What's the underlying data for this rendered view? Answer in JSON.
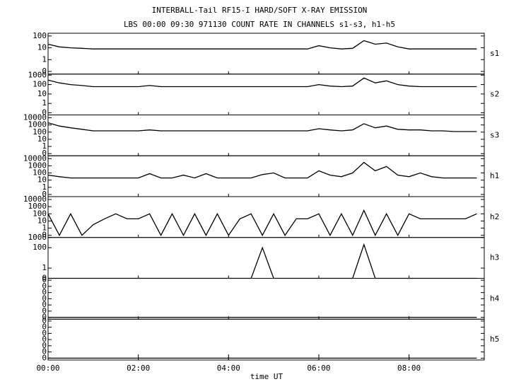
{
  "chart_data": {
    "type": "line",
    "title": "INTERBALL-Tail RF15-I HARD/SOFT X-RAY EMISSION",
    "subtitle": "LBS 00:00 09:30 971130  COUNT RATE IN CHANNELS s1-s3, h1-h5",
    "xlabel": "time UT",
    "xlim": [
      0,
      580
    ],
    "xticks": [
      {
        "value": 0,
        "label": "00:00"
      },
      {
        "value": 120,
        "label": "02:00"
      },
      {
        "value": 240,
        "label": "04:00"
      },
      {
        "value": 360,
        "label": "06:00"
      },
      {
        "value": 480,
        "label": "08:00"
      }
    ],
    "log_scale": true,
    "x": [
      0,
      15,
      30,
      45,
      60,
      75,
      90,
      105,
      120,
      135,
      150,
      165,
      180,
      195,
      210,
      225,
      240,
      255,
      270,
      285,
      300,
      315,
      330,
      345,
      360,
      375,
      390,
      405,
      420,
      435,
      450,
      465,
      480,
      495,
      510,
      525,
      540,
      555,
      570
    ],
    "series": [
      {
        "name": "s1",
        "color": "#000000",
        "ylim": [
          0.06,
          170
        ],
        "yticks": [
          100,
          10,
          1,
          {
            "value": 0.1,
            "label": "0"
          }
        ],
        "values": [
          20,
          12,
          10,
          9,
          8,
          8,
          8,
          8,
          8,
          8,
          8,
          8,
          8,
          8,
          8,
          8,
          8,
          8,
          8,
          8,
          8,
          8,
          8,
          8,
          15,
          10,
          8,
          9,
          40,
          20,
          25,
          12,
          8,
          8,
          8,
          8,
          8,
          8,
          8
        ]
      },
      {
        "name": "s2",
        "color": "#000000",
        "ylim": [
          0.06,
          1300
        ],
        "yticks": [
          1000,
          100,
          10,
          1,
          {
            "value": 0.1,
            "label": "0"
          }
        ],
        "values": [
          300,
          150,
          100,
          80,
          60,
          60,
          60,
          60,
          60,
          80,
          60,
          60,
          60,
          60,
          60,
          60,
          60,
          60,
          60,
          60,
          60,
          60,
          60,
          60,
          100,
          70,
          60,
          70,
          500,
          150,
          250,
          100,
          70,
          60,
          60,
          60,
          60,
          60,
          60
        ]
      },
      {
        "name": "s3",
        "color": "#000000",
        "ylim": [
          0.05,
          25000
        ],
        "yticks": [
          10000,
          1000,
          100,
          10,
          1,
          {
            "value": 0.1,
            "label": "0"
          }
        ],
        "values": [
          2000,
          700,
          400,
          250,
          150,
          150,
          150,
          150,
          150,
          200,
          150,
          150,
          150,
          150,
          150,
          150,
          150,
          150,
          150,
          150,
          150,
          150,
          150,
          150,
          300,
          200,
          150,
          200,
          1500,
          400,
          700,
          250,
          200,
          200,
          150,
          150,
          120,
          120,
          120
        ]
      },
      {
        "name": "h1",
        "color": "#000000",
        "ylim": [
          0.05,
          25000
        ],
        "yticks": [
          10000,
          1000,
          100,
          10,
          1,
          {
            "value": 0.1,
            "label": "0"
          }
        ],
        "values": [
          50,
          30,
          20,
          20,
          20,
          20,
          20,
          20,
          20,
          80,
          20,
          20,
          50,
          20,
          80,
          20,
          20,
          20,
          20,
          60,
          100,
          20,
          20,
          20,
          200,
          50,
          30,
          100,
          3000,
          200,
          800,
          50,
          30,
          100,
          30,
          20,
          20,
          20,
          20
        ]
      },
      {
        "name": "h2",
        "color": "#000000",
        "ylim": [
          0.05,
          25000
        ],
        "yticks": [
          10000,
          1000,
          100,
          10,
          1,
          {
            "value": 0.1,
            "label": "0"
          }
        ],
        "values": [
          100,
          0.1,
          100,
          0.1,
          3,
          20,
          100,
          20,
          20,
          100,
          0.1,
          100,
          0.1,
          100,
          0.1,
          100,
          0.1,
          20,
          100,
          0.1,
          100,
          0.1,
          20,
          20,
          100,
          0.1,
          100,
          0.1,
          300,
          0.1,
          100,
          0.1,
          100,
          20,
          20,
          20,
          20,
          20,
          100
        ]
      },
      {
        "name": "h3",
        "color": "#000000",
        "ylim": [
          0.1,
          1000
        ],
        "yticks": [
          1000,
          100,
          1,
          {
            "value": 0.1,
            "label": "0"
          }
        ],
        "values": [
          0.1,
          0.1,
          0.1,
          0.1,
          0.1,
          0.1,
          0.1,
          0.1,
          0.1,
          0.1,
          0.1,
          0.1,
          0.1,
          0.1,
          0.1,
          0.1,
          0.1,
          0.1,
          0.1,
          100,
          0.1,
          0.1,
          0.1,
          0.1,
          0.1,
          0.1,
          0.1,
          0.1,
          200,
          0.1,
          0.1,
          0.1,
          0.1,
          0.1,
          0.1,
          0.1,
          0.1,
          0.1,
          0.1
        ]
      },
      {
        "name": "h4",
        "color": "#000000",
        "ylim": [
          5e-07,
          2
        ],
        "yticks": [
          {
            "value": 1,
            "label": "0"
          },
          {
            "value": 0.1,
            "label": "0"
          },
          {
            "value": 0.01,
            "label": "0"
          },
          {
            "value": 0.001,
            "label": "0"
          },
          {
            "value": 0.0001,
            "label": "0"
          },
          {
            "value": 1e-05,
            "label": "0"
          },
          {
            "value": 1e-06,
            "label": "0"
          }
        ],
        "values": [
          1e-06,
          1e-06,
          1e-06,
          1e-06,
          1e-06,
          1e-06,
          1e-06,
          1e-06,
          1e-06,
          1e-06,
          1e-06,
          1e-06,
          1e-06,
          1e-06,
          1e-06,
          1e-06,
          1e-06,
          1e-06,
          1e-06,
          1e-06,
          1e-06,
          1e-06,
          1e-06,
          1e-06,
          1e-06,
          1e-06,
          1e-06,
          1e-06,
          1e-06,
          1e-06,
          1e-06,
          1e-06,
          1e-06,
          1e-06,
          1e-06,
          1e-06,
          1e-06,
          1e-06,
          1e-06
        ]
      },
      {
        "name": "h5",
        "color": "#000000",
        "ylim": [
          5e-07,
          2
        ],
        "yticks": [
          {
            "value": 1,
            "label": "0"
          },
          {
            "value": 0.1,
            "label": "0"
          },
          {
            "value": 0.01,
            "label": "0"
          },
          {
            "value": 0.001,
            "label": "0"
          },
          {
            "value": 0.0001,
            "label": "0"
          },
          {
            "value": 1e-05,
            "label": "0"
          },
          {
            "value": 1e-06,
            "label": "0"
          }
        ],
        "values": [
          1e-06,
          1e-06,
          1e-06,
          1e-06,
          1e-06,
          1e-06,
          1e-06,
          1e-06,
          1e-06,
          1e-06,
          1e-06,
          1e-06,
          1e-06,
          1e-06,
          1e-06,
          1e-06,
          1e-06,
          1e-06,
          1e-06,
          1e-06,
          1e-06,
          1e-06,
          1e-06,
          1e-06,
          1e-06,
          1e-06,
          1e-06,
          1e-06,
          1e-06,
          1e-06,
          1e-06,
          1e-06,
          1e-06,
          1e-06,
          1e-06,
          1e-06,
          1e-06,
          1e-06,
          1e-06
        ]
      }
    ]
  }
}
